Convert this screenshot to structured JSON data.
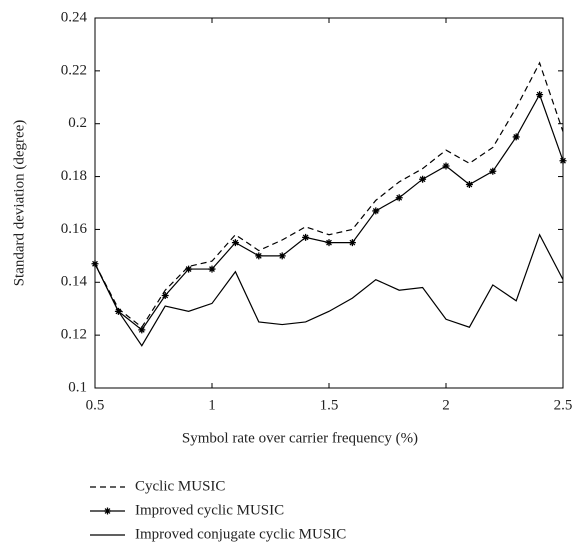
{
  "chart_data": {
    "type": "line",
    "xlabel": "Symbol rate over carrier frequency (%)",
    "ylabel": "Standard deviation (degree)",
    "x": [
      0.5,
      0.6,
      0.7,
      0.8,
      0.9,
      1.0,
      1.1,
      1.2,
      1.3,
      1.4,
      1.5,
      1.6,
      1.7,
      1.8,
      1.9,
      2.0,
      2.1,
      2.2,
      2.3,
      2.4,
      2.5
    ],
    "series": [
      {
        "name": "Cyclic MUSIC",
        "color": "#000000",
        "linestyle": "dashed",
        "marker": "none",
        "values": [
          0.147,
          0.13,
          0.123,
          0.137,
          0.146,
          0.148,
          0.158,
          0.152,
          0.156,
          0.161,
          0.158,
          0.16,
          0.171,
          0.178,
          0.183,
          0.19,
          0.185,
          0.191,
          0.206,
          0.223,
          0.197
        ]
      },
      {
        "name": "Improved cyclic MUSIC",
        "color": "#000000",
        "linestyle": "solid",
        "marker": "star",
        "values": [
          0.147,
          0.129,
          0.122,
          0.135,
          0.145,
          0.145,
          0.155,
          0.15,
          0.15,
          0.157,
          0.155,
          0.155,
          0.167,
          0.172,
          0.179,
          0.184,
          0.177,
          0.182,
          0.195,
          0.211,
          0.186
        ]
      },
      {
        "name": "Improved conjugate cyclic MUSIC",
        "color": "#000000",
        "linestyle": "solid",
        "marker": "none",
        "values": [
          0.147,
          0.129,
          0.116,
          0.131,
          0.129,
          0.132,
          0.144,
          0.125,
          0.124,
          0.125,
          0.129,
          0.134,
          0.141,
          0.137,
          0.138,
          0.126,
          0.123,
          0.139,
          0.133,
          0.158,
          0.141
        ]
      }
    ],
    "xlim": [
      0.5,
      2.5
    ],
    "xticks": [
      0.5,
      1,
      1.5,
      2,
      2.5
    ],
    "ylim": [
      0.1,
      0.24
    ],
    "yticks": [
      0.1,
      0.12,
      0.14,
      0.16,
      0.18,
      0.2,
      0.22,
      0.24
    ],
    "grid": false,
    "legend": "below"
  }
}
